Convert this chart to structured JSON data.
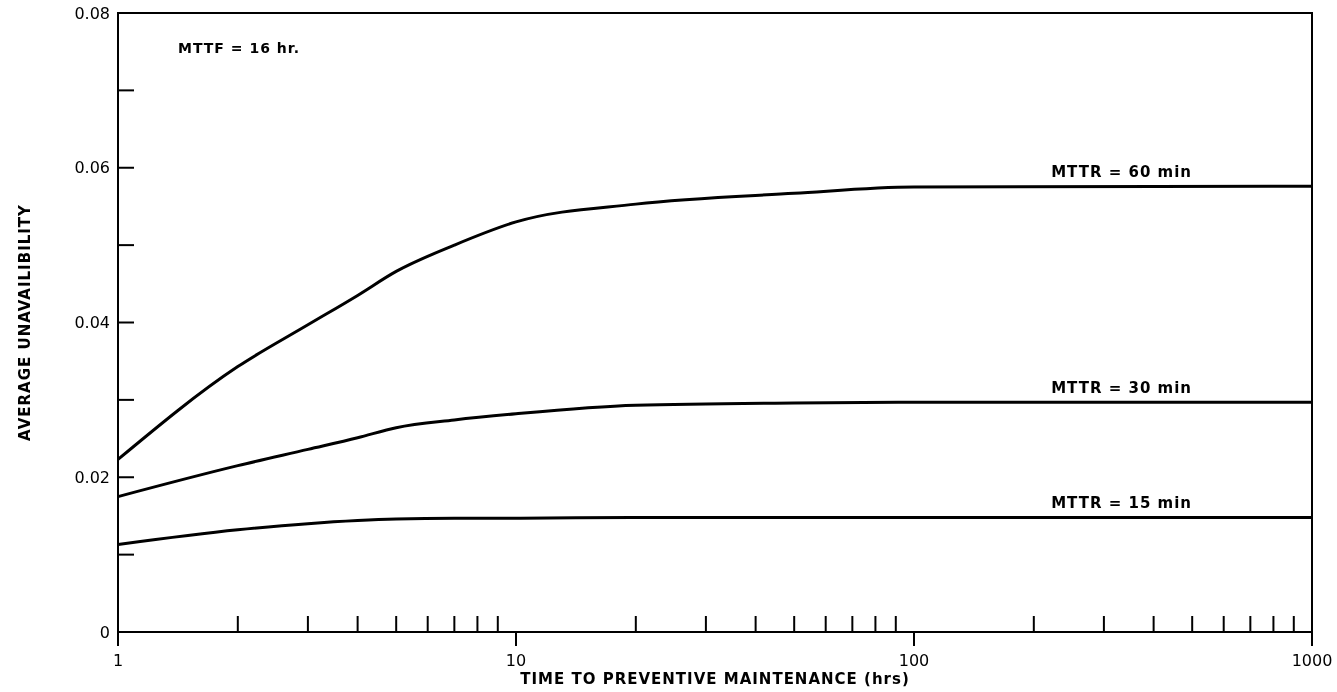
{
  "chart_data": {
    "type": "line",
    "xlabel": "TIME TO PREVENTIVE MAINTENANCE (hrs)",
    "ylabel": "AVERAGE UNAVAILIBILITY",
    "log": "x",
    "xlim": [
      1,
      1000
    ],
    "xticks": [
      {
        "value": 1,
        "label": "1"
      },
      {
        "value": 2,
        "label": null
      },
      {
        "value": 3,
        "label": null
      },
      {
        "value": 4,
        "label": null
      },
      {
        "value": 5,
        "label": null
      },
      {
        "value": 6,
        "label": null
      },
      {
        "value": 7,
        "label": null
      },
      {
        "value": 8,
        "label": null
      },
      {
        "value": 9,
        "label": null
      },
      {
        "value": 10,
        "label": "10"
      },
      {
        "value": 20,
        "label": null
      },
      {
        "value": 30,
        "label": null
      },
      {
        "value": 40,
        "label": null
      },
      {
        "value": 50,
        "label": null
      },
      {
        "value": 60,
        "label": null
      },
      {
        "value": 70,
        "label": null
      },
      {
        "value": 80,
        "label": null
      },
      {
        "value": 90,
        "label": null
      },
      {
        "value": 100,
        "label": "100"
      },
      {
        "value": 200,
        "label": null
      },
      {
        "value": 300,
        "label": null
      },
      {
        "value": 400,
        "label": null
      },
      {
        "value": 500,
        "label": null
      },
      {
        "value": 600,
        "label": null
      },
      {
        "value": 700,
        "label": null
      },
      {
        "value": 800,
        "label": null
      },
      {
        "value": 900,
        "label": null
      },
      {
        "value": 1000,
        "label": "1000"
      }
    ],
    "ylim": [
      0,
      0.08
    ],
    "yticks": [
      {
        "value": 0,
        "label": "0"
      },
      {
        "value": 0.01,
        "label": null
      },
      {
        "value": 0.02,
        "label": "0.02"
      },
      {
        "value": 0.03,
        "label": null
      },
      {
        "value": 0.04,
        "label": "0.04"
      },
      {
        "value": 0.05,
        "label": null
      },
      {
        "value": 0.06,
        "label": "0.06"
      },
      {
        "value": 0.07,
        "label": null
      },
      {
        "value": 0.08,
        "label": "0.08"
      }
    ],
    "x": [
      1,
      2,
      3,
      4,
      5,
      7,
      10,
      20,
      50,
      100,
      1000
    ],
    "series": [
      {
        "name": "MTTR = 60 min",
        "color": "#000000",
        "values": [
          0.0223,
          0.0343,
          0.0397,
          0.0435,
          0.0466,
          0.05,
          0.053,
          0.0553,
          0.0567,
          0.0575,
          0.0576
        ]
      },
      {
        "name": "MTTR = 30 min",
        "color": "#000000",
        "values": [
          0.0175,
          0.0215,
          0.0236,
          0.0251,
          0.0264,
          0.0274,
          0.0282,
          0.0293,
          0.0296,
          0.0297,
          0.0297
        ]
      },
      {
        "name": "MTTR = 15 min",
        "color": "#000000",
        "values": [
          0.0113,
          0.0132,
          0.014,
          0.0144,
          0.0146,
          0.0147,
          0.0147,
          0.0148,
          0.0148,
          0.0148,
          0.0148
        ]
      }
    ],
    "annotations": [
      "MTTF = 16 hr."
    ]
  }
}
